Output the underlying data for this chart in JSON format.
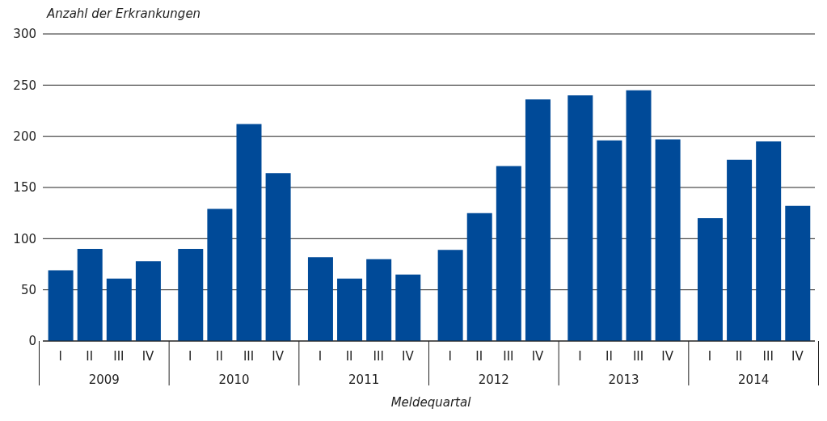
{
  "chart_data": {
    "type": "bar",
    "ylabel": "Anzahl der Erkrankungen",
    "xlabel": "Meldequartal",
    "categories": [
      "I",
      "II",
      "III",
      "IV",
      "I",
      "II",
      "III",
      "IV",
      "I",
      "II",
      "III",
      "IV",
      "I",
      "II",
      "III",
      "IV",
      "I",
      "II",
      "III",
      "IV",
      "I",
      "II",
      "III",
      "IV"
    ],
    "annotations": [
      "2009",
      "2010",
      "2011",
      "2012",
      "2013",
      "2014"
    ],
    "values": [
      69,
      90,
      61,
      78,
      90,
      129,
      212,
      164,
      82,
      61,
      80,
      65,
      89,
      125,
      171,
      236,
      240,
      196,
      245,
      197,
      120,
      177,
      195,
      132
    ],
    "color": "#004a98",
    "ylim": [
      0,
      300
    ],
    "yticks": [
      0,
      50,
      100,
      150,
      200,
      250,
      300
    ],
    "grid": "y"
  }
}
